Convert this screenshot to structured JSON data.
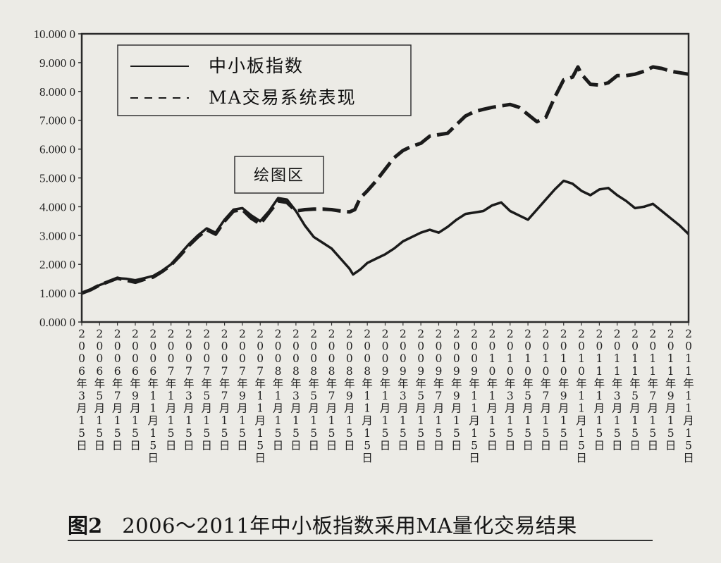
{
  "chart_data": {
    "type": "line",
    "ylim": [
      0,
      10
    ],
    "y_ticks": [
      "0.000 0",
      "1.000 0",
      "2.000 0",
      "3.000 0",
      "4.000 0",
      "5.000 0",
      "6.000 0",
      "7.000 0",
      "8.000 0",
      "9.000 0",
      "10.000 0"
    ],
    "x_tick_labels": [
      "2006年3月15日",
      "2006年5月15日",
      "2006年7月15日",
      "2006年9月15日",
      "2006年11月15日",
      "2007年1月15日",
      "2007年3月15日",
      "2007年5月15日",
      "2007年7月15日",
      "2007年9月15日",
      "2007年11月15日",
      "2008年1月15日",
      "2008年3月15日",
      "2008年5月15日",
      "2008年7月15日",
      "2008年9月15日",
      "2008年11月15日",
      "2009年1月15日",
      "2009年3月15日",
      "2009年5月15日",
      "2009年7月15日",
      "2009年9月15日",
      "2009年11月15日",
      "2010年1月15日",
      "2010年3月15日",
      "2010年5月15日",
      "2010年7月15日",
      "2010年9月15日",
      "2010年11月15日",
      "2011年1月15日",
      "2011年3月15日",
      "2011年5月15日",
      "2011年7月15日",
      "2011年9月15日",
      "2011年11月15日"
    ],
    "series": [
      {
        "name": "中小板指数",
        "style": "solid",
        "points": [
          [
            0,
            1.0
          ],
          [
            0.5,
            1.12
          ],
          [
            1,
            1.28
          ],
          [
            1.5,
            1.4
          ],
          [
            2,
            1.52
          ],
          [
            2.5,
            1.5
          ],
          [
            3,
            1.45
          ],
          [
            3.5,
            1.52
          ],
          [
            4,
            1.6
          ],
          [
            4.5,
            1.78
          ],
          [
            5,
            2.0
          ],
          [
            5.5,
            2.35
          ],
          [
            6,
            2.7
          ],
          [
            6.5,
            3.0
          ],
          [
            7,
            3.25
          ],
          [
            7.5,
            3.1
          ],
          [
            8,
            3.55
          ],
          [
            8.5,
            3.9
          ],
          [
            9,
            3.95
          ],
          [
            9.5,
            3.7
          ],
          [
            10,
            3.5
          ],
          [
            10.5,
            3.85
          ],
          [
            11,
            4.3
          ],
          [
            11.5,
            4.25
          ],
          [
            12,
            3.85
          ],
          [
            12.5,
            3.35
          ],
          [
            13,
            2.95
          ],
          [
            13.5,
            2.75
          ],
          [
            14,
            2.55
          ],
          [
            14.5,
            2.2
          ],
          [
            15,
            1.85
          ],
          [
            15.2,
            1.65
          ],
          [
            15.6,
            1.82
          ],
          [
            16,
            2.05
          ],
          [
            16.5,
            2.2
          ],
          [
            17,
            2.35
          ],
          [
            17.5,
            2.55
          ],
          [
            18,
            2.8
          ],
          [
            18.5,
            2.95
          ],
          [
            19,
            3.1
          ],
          [
            19.5,
            3.2
          ],
          [
            20,
            3.1
          ],
          [
            20.5,
            3.3
          ],
          [
            21,
            3.55
          ],
          [
            21.5,
            3.75
          ],
          [
            22,
            3.8
          ],
          [
            22.5,
            3.85
          ],
          [
            23,
            4.05
          ],
          [
            23.5,
            4.15
          ],
          [
            24,
            3.85
          ],
          [
            24.5,
            3.7
          ],
          [
            25,
            3.55
          ],
          [
            25.5,
            3.9
          ],
          [
            26,
            4.25
          ],
          [
            26.5,
            4.6
          ],
          [
            27,
            4.9
          ],
          [
            27.5,
            4.8
          ],
          [
            28,
            4.55
          ],
          [
            28.5,
            4.4
          ],
          [
            29,
            4.6
          ],
          [
            29.5,
            4.65
          ],
          [
            30,
            4.4
          ],
          [
            30.5,
            4.2
          ],
          [
            31,
            3.95
          ],
          [
            31.5,
            4.0
          ],
          [
            32,
            4.1
          ],
          [
            32.5,
            3.85
          ],
          [
            33,
            3.6
          ],
          [
            33.5,
            3.35
          ],
          [
            34,
            3.05
          ]
        ]
      },
      {
        "name": "MA交易系统表现",
        "style": "dashed",
        "points": [
          [
            0,
            1.0
          ],
          [
            0.5,
            1.12
          ],
          [
            1,
            1.28
          ],
          [
            1.5,
            1.4
          ],
          [
            2,
            1.52
          ],
          [
            2.5,
            1.45
          ],
          [
            3,
            1.38
          ],
          [
            3.5,
            1.48
          ],
          [
            4,
            1.56
          ],
          [
            4.5,
            1.75
          ],
          [
            5,
            1.98
          ],
          [
            5.5,
            2.3
          ],
          [
            6,
            2.65
          ],
          [
            6.5,
            2.95
          ],
          [
            7,
            3.2
          ],
          [
            7.5,
            3.05
          ],
          [
            8,
            3.5
          ],
          [
            8.5,
            3.85
          ],
          [
            9,
            3.9
          ],
          [
            9.5,
            3.6
          ],
          [
            10,
            3.4
          ],
          [
            10.5,
            3.8
          ],
          [
            11,
            4.2
          ],
          [
            11.5,
            4.15
          ],
          [
            12,
            3.85
          ],
          [
            12.5,
            3.9
          ],
          [
            13,
            3.92
          ],
          [
            13.5,
            3.92
          ],
          [
            14,
            3.9
          ],
          [
            14.5,
            3.85
          ],
          [
            15,
            3.82
          ],
          [
            15.3,
            3.9
          ],
          [
            15.6,
            4.3
          ],
          [
            16,
            4.55
          ],
          [
            16.5,
            4.9
          ],
          [
            17,
            5.3
          ],
          [
            17.5,
            5.7
          ],
          [
            18,
            5.95
          ],
          [
            18.5,
            6.1
          ],
          [
            19,
            6.2
          ],
          [
            19.5,
            6.45
          ],
          [
            20,
            6.5
          ],
          [
            20.5,
            6.55
          ],
          [
            21,
            6.85
          ],
          [
            21.5,
            7.15
          ],
          [
            22,
            7.3
          ],
          [
            22.5,
            7.38
          ],
          [
            23,
            7.45
          ],
          [
            23.5,
            7.5
          ],
          [
            24,
            7.55
          ],
          [
            24.5,
            7.45
          ],
          [
            25,
            7.2
          ],
          [
            25.5,
            6.95
          ],
          [
            26,
            7.1
          ],
          [
            26.5,
            7.8
          ],
          [
            27,
            8.4
          ],
          [
            27.5,
            8.5
          ],
          [
            27.8,
            8.85
          ],
          [
            28,
            8.6
          ],
          [
            28.5,
            8.25
          ],
          [
            29,
            8.22
          ],
          [
            29.5,
            8.3
          ],
          [
            30,
            8.55
          ],
          [
            30.5,
            8.55
          ],
          [
            31,
            8.6
          ],
          [
            31.5,
            8.7
          ],
          [
            32,
            8.85
          ],
          [
            32.5,
            8.8
          ],
          [
            33,
            8.7
          ],
          [
            33.5,
            8.65
          ],
          [
            34,
            8.6
          ]
        ]
      }
    ],
    "annotation": "绘图区",
    "legend_position": "top-left",
    "grid": false
  },
  "caption": {
    "figure_number": "图2",
    "title": "2006～2011年中小板指数采用MA量化交易结果"
  }
}
